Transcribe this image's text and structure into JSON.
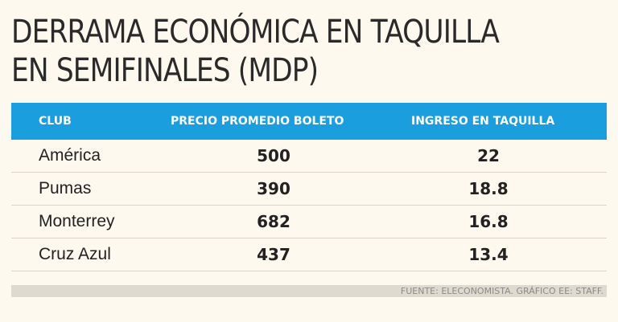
{
  "chart_data": {
    "type": "table",
    "title": [
      "DERRAMA ECONÓMICA EN TAQUILLA",
      "EN SEMIFINALES (MDP)"
    ],
    "columns": [
      "CLUB",
      "PRECIO PROMEDIO BOLETO",
      "INGRESO EN TAQUILLA"
    ],
    "rows": [
      {
        "club": "América",
        "precio": "500",
        "ingreso": "22"
      },
      {
        "club": "Pumas",
        "precio": "390",
        "ingreso": "18.8"
      },
      {
        "club": "Monterrey",
        "precio": "682",
        "ingreso": "16.8"
      },
      {
        "club": "Cruz Azul",
        "precio": "437",
        "ingreso": "13.4"
      }
    ],
    "source": "FUENTE: ELECONOMISTA. GRÁFICO EE: STAFF."
  },
  "colors": {
    "header_bg": "#1a9ede",
    "header_text": "#ffffff",
    "background": "#fdf9ef",
    "source_bar": "#dedad0"
  }
}
